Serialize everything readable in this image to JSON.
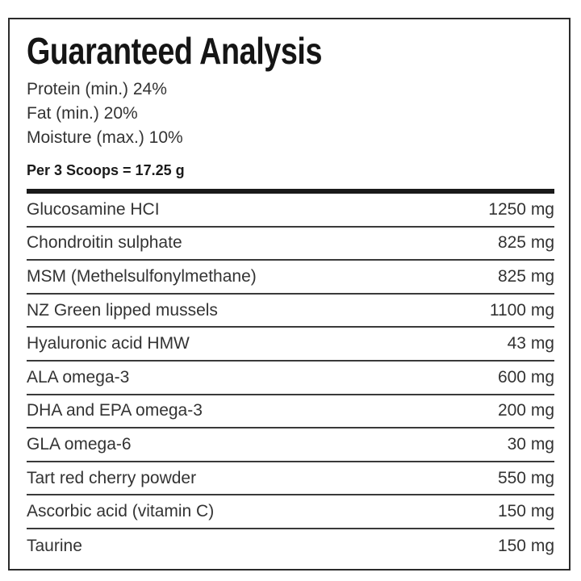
{
  "title": "Guaranteed Analysis",
  "guaranteed": [
    "Protein (min.) 24%",
    "Fat (min.) 20%",
    "Moisture (max.) 10%"
  ],
  "serving": "Per 3 Scoops = 17.25 g",
  "ingredients": [
    {
      "name": "Glucosamine HCI",
      "amount": "1250 mg"
    },
    {
      "name": "Chondroitin sulphate",
      "amount": "825 mg"
    },
    {
      "name": "MSM (Methelsulfonylmethane)",
      "amount": "825 mg"
    },
    {
      "name": "NZ Green lipped mussels",
      "amount": "1100 mg"
    },
    {
      "name": "Hyaluronic acid HMW",
      "amount": "43 mg"
    },
    {
      "name": "ALA omega-3",
      "amount": "600 mg"
    },
    {
      "name": "DHA and EPA omega-3",
      "amount": "200 mg"
    },
    {
      "name": "GLA omega-6",
      "amount": "30 mg"
    },
    {
      "name": "Tart red cherry powder",
      "amount": "550 mg"
    },
    {
      "name": "Ascorbic acid (vitamin C)",
      "amount": "150 mg"
    },
    {
      "name": "Taurine",
      "amount": "150 mg"
    }
  ]
}
